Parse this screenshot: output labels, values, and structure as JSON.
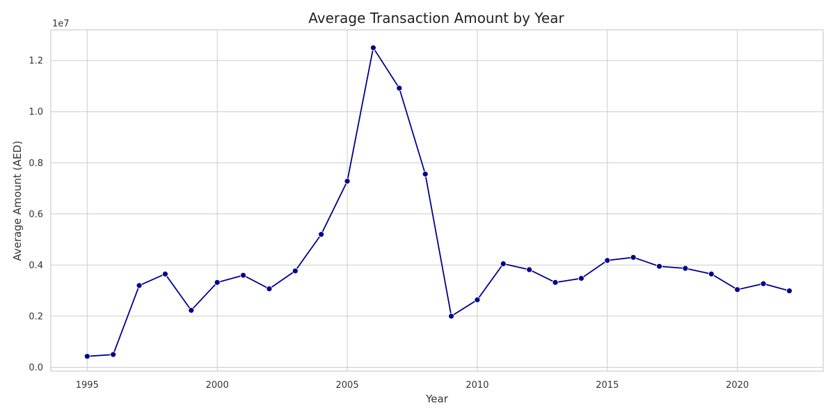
{
  "chart_data": {
    "type": "line",
    "title": "Average Transaction Amount by Year",
    "xlabel": "Year",
    "ylabel": "Average Amount (AED)",
    "y_offset_label": "1e7",
    "scale_factor": 10000000,
    "xlim": [
      1993.6,
      2023.3
    ],
    "ylim": [
      -150000,
      13200000
    ],
    "x_ticks": [
      1995,
      2000,
      2005,
      2010,
      2015,
      2020
    ],
    "x_tick_labels": [
      "1995",
      "2000",
      "2005",
      "2010",
      "2015",
      "2020"
    ],
    "y_ticks": [
      0,
      2000000,
      4000000,
      6000000,
      8000000,
      10000000,
      12000000
    ],
    "y_tick_labels": [
      "0.0",
      "0.2",
      "0.4",
      "0.6",
      "0.8",
      "1.0",
      "1.2"
    ],
    "grid": true,
    "line_color": "#00008b",
    "series": [
      {
        "x": [
          1995,
          1996,
          1997,
          1998,
          1999,
          2000,
          2001,
          2002,
          2003,
          2004,
          2005,
          2006,
          2007,
          2008,
          2009,
          2010,
          2011,
          2012,
          2013,
          2014,
          2015,
          2016,
          2017,
          2018,
          2019,
          2020,
          2021,
          2022
        ],
        "y": [
          430000,
          500000,
          3200000,
          3650000,
          2230000,
          3320000,
          3600000,
          3070000,
          3770000,
          5200000,
          7280000,
          12500000,
          10920000,
          7560000,
          2000000,
          2640000,
          4050000,
          3820000,
          3320000,
          3480000,
          4180000,
          4300000,
          3950000,
          3870000,
          3650000,
          3040000,
          3270000,
          2990000
        ]
      }
    ]
  }
}
